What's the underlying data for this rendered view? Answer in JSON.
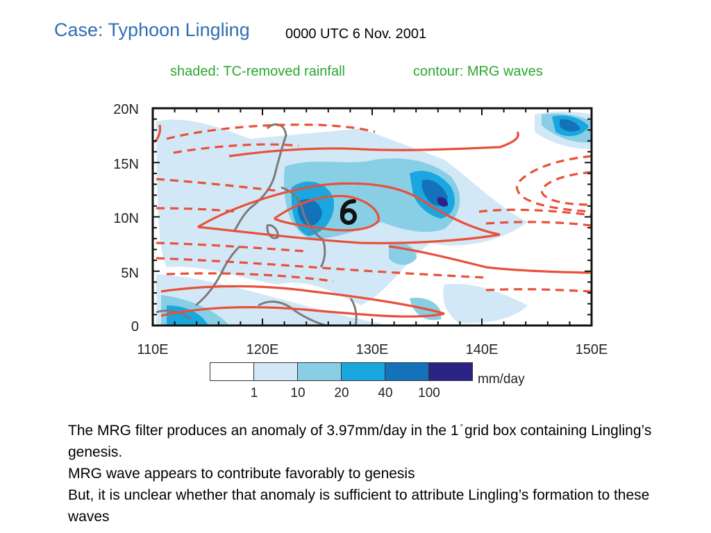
{
  "slide": {
    "title": "Case: Typhoon Lingling",
    "time": "0000 UTC 6 Nov. 2001",
    "legend_shaded": "shaded: TC-removed rainfall",
    "legend_contour": "contour: MRG waves"
  },
  "map": {
    "lat_labels": [
      "20N",
      "15N",
      "10N",
      "5N",
      "0"
    ],
    "lon_labels": [
      "110E",
      "120E",
      "130E",
      "140E",
      "150E"
    ],
    "storm_symbol": "typhoon-symbol-icon",
    "colors": {
      "contour": "#e8503a",
      "coast": "#7a7a7a",
      "rain_levels": [
        "#ffffff",
        "#d3e8f7",
        "#88cfe6",
        "#1aa7df",
        "#1472bb",
        "#2b2485"
      ]
    }
  },
  "colorbar": {
    "ticks": [
      "1",
      "10",
      "20",
      "40",
      "100"
    ],
    "unit": "mm/day"
  },
  "notes": {
    "line1_a": "The MRG filter produces an anomaly of 3.97mm/day in the 1",
    "line1_deg": "°",
    "line1_b": "grid box containing Lingling’s genesis.",
    "line2": "MRG wave appears to contribute favorably to genesis",
    "line3": "But, it is unclear whether that anomaly is sufficient to attribute Lingling’s formation to these waves"
  }
}
